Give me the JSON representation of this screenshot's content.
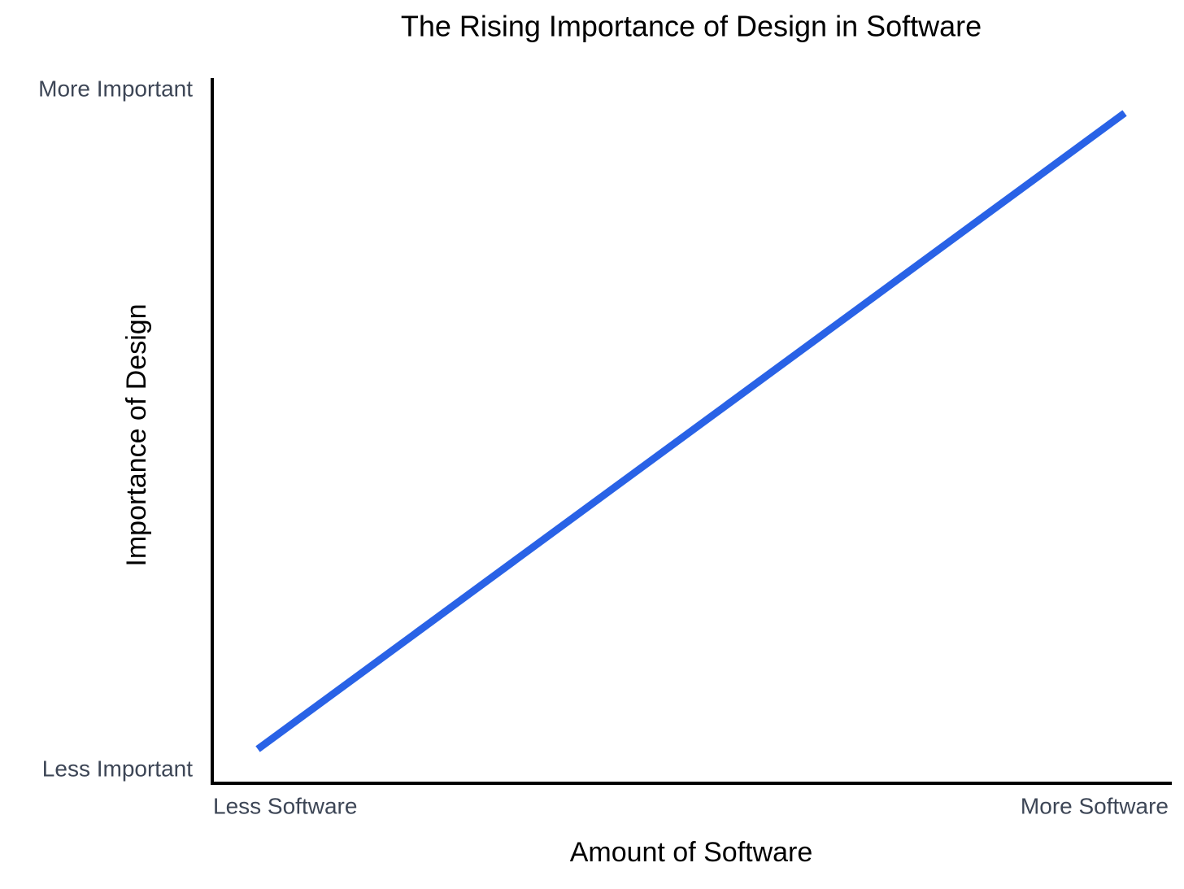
{
  "chart_data": {
    "type": "line",
    "title": "The Rising Importance of Design in Software",
    "x_axis_label": "Amount of Software",
    "y_axis_label": "Importance of Design",
    "x_end_labels": [
      "Less Software",
      "More Software"
    ],
    "y_end_labels": [
      "Less Important",
      "More Important"
    ],
    "color": "#2962e6"
  }
}
